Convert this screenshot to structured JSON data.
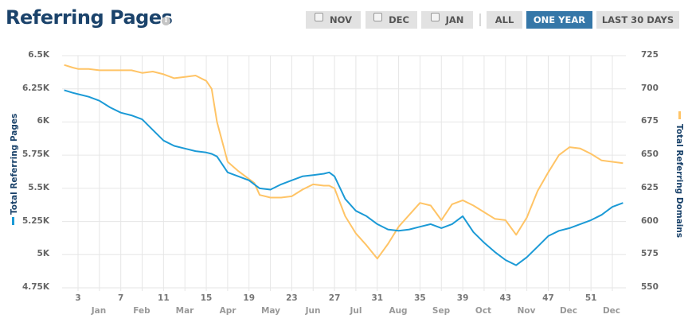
{
  "header": {
    "title": "Referring Pages",
    "info_icon": "info-icon"
  },
  "toolbar": {
    "checkbox_buttons": [
      {
        "label": "NOV",
        "checked": false
      },
      {
        "label": "DEC",
        "checked": false
      },
      {
        "label": "JAN",
        "checked": false
      }
    ],
    "range_buttons": [
      {
        "label": "ALL",
        "active": false
      },
      {
        "label": "ONE YEAR",
        "active": true
      },
      {
        "label": "LAST 30 DAYS",
        "active": false
      }
    ]
  },
  "colors": {
    "pages_series": "#1b9ad6",
    "domains_series": "#ffc466",
    "title": "#1b436b",
    "active_button": "#3577a8",
    "button_bg": "#e2e2e2",
    "grid": "#e6e6e6"
  },
  "chart_data": {
    "type": "line",
    "title": "Referring Pages",
    "xlabel": "",
    "x_tick_labels": [
      "3",
      "7",
      "11",
      "15",
      "19",
      "23",
      "27",
      "31",
      "35",
      "39",
      "43",
      "47",
      "51"
    ],
    "x_month_labels": [
      "Jan",
      "Feb",
      "Mar",
      "Apr",
      "May",
      "Jun",
      "Jul",
      "Aug",
      "Sep",
      "Oct",
      "Nov",
      "Dec",
      "Dec"
    ],
    "y_left": {
      "label": "Total Referring Pages",
      "ticks": [
        "6.5K",
        "6.25K",
        "6K",
        "5.75K",
        "5.5K",
        "5.25K",
        "5K",
        "4.75K"
      ],
      "range": [
        4750,
        6500
      ]
    },
    "y_right": {
      "label": "Total Referring Domains",
      "ticks": [
        "725",
        "700",
        "675",
        "650",
        "625",
        "600",
        "575",
        "550"
      ],
      "range": [
        550,
        725
      ]
    },
    "grid": true,
    "legend_position": "axis-labels",
    "x": [
      1.7,
      2.5,
      3,
      4,
      5,
      6,
      7,
      8,
      9,
      10,
      11,
      12,
      13,
      14,
      15,
      15.5,
      16,
      17,
      18,
      19,
      19.5,
      20,
      21,
      22,
      23,
      24,
      25,
      26,
      26.5,
      27,
      28,
      29,
      30,
      31,
      32,
      33,
      34,
      35,
      36,
      37,
      38,
      39,
      40,
      41,
      42,
      43,
      44,
      45,
      46,
      47,
      48,
      49,
      50,
      51,
      52,
      53,
      54
    ],
    "series": [
      {
        "name": "Total Referring Pages",
        "axis": "left",
        "values": [
          6240,
          6220,
          6210,
          6190,
          6160,
          6110,
          6070,
          6050,
          6020,
          5940,
          5860,
          5820,
          5800,
          5780,
          5770,
          5760,
          5740,
          5620,
          5590,
          5560,
          5530,
          5500,
          5490,
          5530,
          5560,
          5590,
          5600,
          5610,
          5620,
          5590,
          5420,
          5330,
          5290,
          5230,
          5190,
          5180,
          5190,
          5210,
          5230,
          5200,
          5230,
          5290,
          5170,
          5090,
          5020,
          4960,
          4920,
          4980,
          5060,
          5140,
          5180,
          5200,
          5230,
          5260,
          5300,
          5360,
          5390
        ]
      },
      {
        "name": "Total Referring Domains",
        "axis": "right",
        "values": [
          718,
          716,
          715,
          715,
          714,
          714,
          714,
          714,
          712,
          713,
          711,
          708,
          709,
          710,
          706,
          700,
          675,
          645,
          638,
          632,
          629,
          620,
          618,
          618,
          619,
          624,
          628,
          627,
          627,
          625,
          604,
          591,
          582,
          572,
          583,
          596,
          605,
          614,
          612,
          601,
          613,
          616,
          612,
          607,
          602,
          601,
          590,
          603,
          623,
          637,
          650,
          656,
          655,
          651,
          646,
          645,
          644
        ]
      }
    ]
  }
}
